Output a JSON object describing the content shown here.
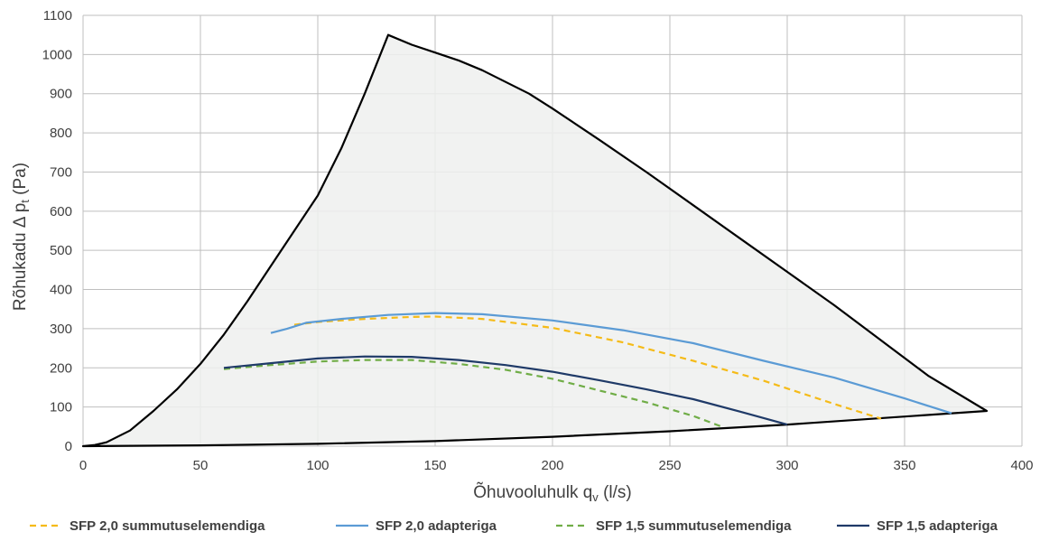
{
  "chart_data": {
    "type": "line",
    "xlabel": "Õhuvooluhulk q",
    "xlabel_sub": "v",
    "xlabel_unit": " (l/s)",
    "ylabel": "Rõhukadu  Δ p",
    "ylabel_sub": "t",
    "ylabel_unit": "   (Pa)",
    "xlim": [
      0,
      400
    ],
    "ylim": [
      0,
      1100
    ],
    "x_ticks": [
      "0",
      "50",
      "100",
      "150",
      "200",
      "250",
      "300",
      "350",
      "400"
    ],
    "y_ticks": [
      "0",
      "100",
      "200",
      "300",
      "400",
      "500",
      "600",
      "700",
      "800",
      "900",
      "1000",
      "1100"
    ],
    "grid": true,
    "legend_position": "bottom",
    "envelope": {
      "fill_color": "#eef0ef",
      "line_color": "#000000",
      "points": [
        [
          0,
          0
        ],
        [
          5,
          3
        ],
        [
          10,
          10
        ],
        [
          20,
          40
        ],
        [
          30,
          90
        ],
        [
          40,
          145
        ],
        [
          50,
          210
        ],
        [
          60,
          285
        ],
        [
          70,
          370
        ],
        [
          80,
          460
        ],
        [
          90,
          550
        ],
        [
          100,
          640
        ],
        [
          110,
          760
        ],
        [
          120,
          900
        ],
        [
          130,
          1050
        ],
        [
          140,
          1025
        ],
        [
          150,
          1005
        ],
        [
          160,
          985
        ],
        [
          170,
          960
        ],
        [
          180,
          930
        ],
        [
          190,
          900
        ],
        [
          200,
          862
        ],
        [
          220,
          782
        ],
        [
          240,
          700
        ],
        [
          260,
          615
        ],
        [
          280,
          530
        ],
        [
          300,
          445
        ],
        [
          320,
          360
        ],
        [
          340,
          270
        ],
        [
          360,
          180
        ],
        [
          385,
          90
        ],
        [
          300,
          55
        ],
        [
          250,
          38
        ],
        [
          200,
          24
        ],
        [
          150,
          13
        ],
        [
          100,
          6
        ],
        [
          50,
          2
        ],
        [
          0,
          0
        ]
      ]
    },
    "series": [
      {
        "name": "SFP 2,0 summutuselemendiga",
        "color": "#f5bb18",
        "dashed": true,
        "points": [
          [
            90,
            310
          ],
          [
            100,
            317
          ],
          [
            120,
            325
          ],
          [
            140,
            330
          ],
          [
            150,
            331
          ],
          [
            170,
            325
          ],
          [
            200,
            302
          ],
          [
            230,
            265
          ],
          [
            260,
            218
          ],
          [
            290,
            167
          ],
          [
            320,
            108
          ],
          [
            340,
            70
          ]
        ]
      },
      {
        "name": "SFP 2,0 adapteriga",
        "color": "#5b9bd5",
        "dashed": false,
        "points": [
          [
            80,
            289
          ],
          [
            87,
            300
          ],
          [
            95,
            315
          ],
          [
            110,
            325
          ],
          [
            130,
            335
          ],
          [
            150,
            340
          ],
          [
            170,
            337
          ],
          [
            200,
            321
          ],
          [
            230,
            296
          ],
          [
            260,
            263
          ],
          [
            290,
            218
          ],
          [
            320,
            175
          ],
          [
            350,
            122
          ],
          [
            370,
            84
          ]
        ]
      },
      {
        "name": "SFP 1,5 summutuselemendiga",
        "color": "#70ad47",
        "dashed": true,
        "points": [
          [
            60,
            197
          ],
          [
            80,
            207
          ],
          [
            100,
            216
          ],
          [
            120,
            220
          ],
          [
            140,
            220
          ],
          [
            160,
            210
          ],
          [
            180,
            195
          ],
          [
            200,
            172
          ],
          [
            220,
            142
          ],
          [
            240,
            112
          ],
          [
            260,
            77
          ],
          [
            272,
            50
          ]
        ]
      },
      {
        "name": "SFP 1,5 adapteriga",
        "color": "#1f3a68",
        "dashed": false,
        "points": [
          [
            60,
            200
          ],
          [
            80,
            212
          ],
          [
            100,
            224
          ],
          [
            120,
            229
          ],
          [
            140,
            228
          ],
          [
            160,
            220
          ],
          [
            180,
            207
          ],
          [
            200,
            190
          ],
          [
            220,
            168
          ],
          [
            240,
            145
          ],
          [
            260,
            120
          ],
          [
            280,
            88
          ],
          [
            300,
            55
          ]
        ]
      }
    ]
  }
}
